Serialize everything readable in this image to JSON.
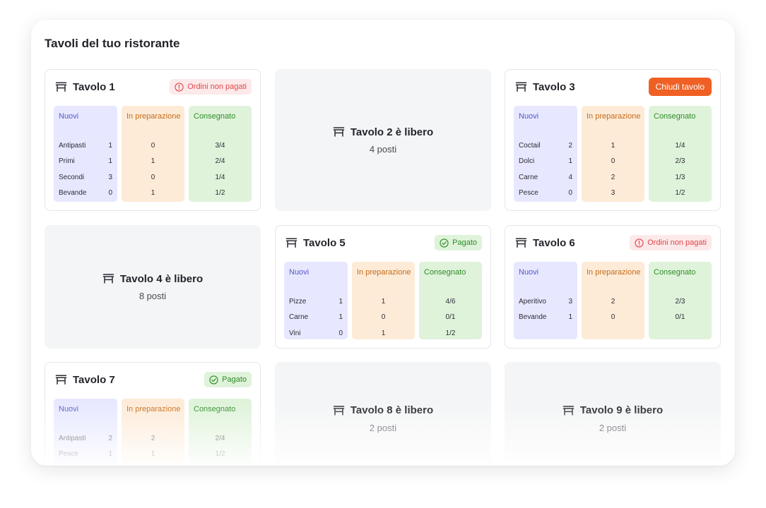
{
  "page_title": "Tavoli del tuo ristorante",
  "column_labels": {
    "nuovi": "Nuovi",
    "prep": "In preparazione",
    "cons": "Consegnato"
  },
  "colors": {
    "accent": "#f06024",
    "unpaid": "#e0464b",
    "paid": "#2e8c28",
    "nuovi": "#e7e8ff",
    "prep": "#fdebd8",
    "cons": "#dff3da"
  },
  "tables": [
    {
      "name": "Tavolo 1",
      "status": "occupied",
      "action": {
        "type": "badge-unpaid",
        "label": "Ordini non pagati",
        "icon": "alert-circle-icon"
      },
      "rows": [
        {
          "name": "Antipasti",
          "nuovi": "1",
          "prep": "0",
          "cons": "3/4"
        },
        {
          "name": "Primi",
          "nuovi": "1",
          "prep": "1",
          "cons": "2/4"
        },
        {
          "name": "Secondi",
          "nuovi": "3",
          "prep": "0",
          "cons": "1/4"
        },
        {
          "name": "Bevande",
          "nuovi": "0",
          "prep": "1",
          "cons": "1/2"
        }
      ]
    },
    {
      "name": "Tavolo 2 è libero",
      "status": "free",
      "seats": "4 posti"
    },
    {
      "name": "Tavolo 3",
      "status": "occupied",
      "action": {
        "type": "button",
        "label": "Chiudi tavolo"
      },
      "rows": [
        {
          "name": "Coctail",
          "nuovi": "2",
          "prep": "1",
          "cons": "1/4"
        },
        {
          "name": "Dolci",
          "nuovi": "1",
          "prep": "0",
          "cons": "2/3"
        },
        {
          "name": "Carne",
          "nuovi": "4",
          "prep": "2",
          "cons": "1/3"
        },
        {
          "name": "Pesce",
          "nuovi": "0",
          "prep": "3",
          "cons": "1/2"
        }
      ]
    },
    {
      "name": "Tavolo 4 è libero",
      "status": "free",
      "seats": "8 posti"
    },
    {
      "name": "Tavolo 5",
      "status": "occupied",
      "action": {
        "type": "badge-paid",
        "label": "Pagato",
        "icon": "check-circle-icon"
      },
      "rows": [
        {
          "name": "Pizze",
          "nuovi": "1",
          "prep": "1",
          "cons": "4/6"
        },
        {
          "name": "Carne",
          "nuovi": "1",
          "prep": "0",
          "cons": "0/1"
        },
        {
          "name": "Vini",
          "nuovi": "0",
          "prep": "1",
          "cons": "1/2"
        }
      ]
    },
    {
      "name": "Tavolo 6",
      "status": "occupied",
      "action": {
        "type": "badge-unpaid",
        "label": "Ordini non pagati",
        "icon": "alert-circle-icon"
      },
      "rows": [
        {
          "name": "Aperitivo",
          "nuovi": "3",
          "prep": "2",
          "cons": "2/3"
        },
        {
          "name": "Bevande",
          "nuovi": "1",
          "prep": "0",
          "cons": "0/1"
        }
      ]
    },
    {
      "name": "Tavolo 7",
      "status": "occupied",
      "action": {
        "type": "badge-paid",
        "label": "Pagato",
        "icon": "check-circle-icon"
      },
      "rows": [
        {
          "name": "Antipasti",
          "nuovi": "2",
          "prep": "2",
          "cons": "2/4"
        },
        {
          "name": "Pesce",
          "nuovi": "1",
          "prep": "1",
          "cons": "1/2"
        }
      ]
    },
    {
      "name": "Tavolo 8 è libero",
      "status": "free",
      "seats": "2 posti"
    },
    {
      "name": "Tavolo 9 è libero",
      "status": "free",
      "seats": "2 posti"
    }
  ]
}
